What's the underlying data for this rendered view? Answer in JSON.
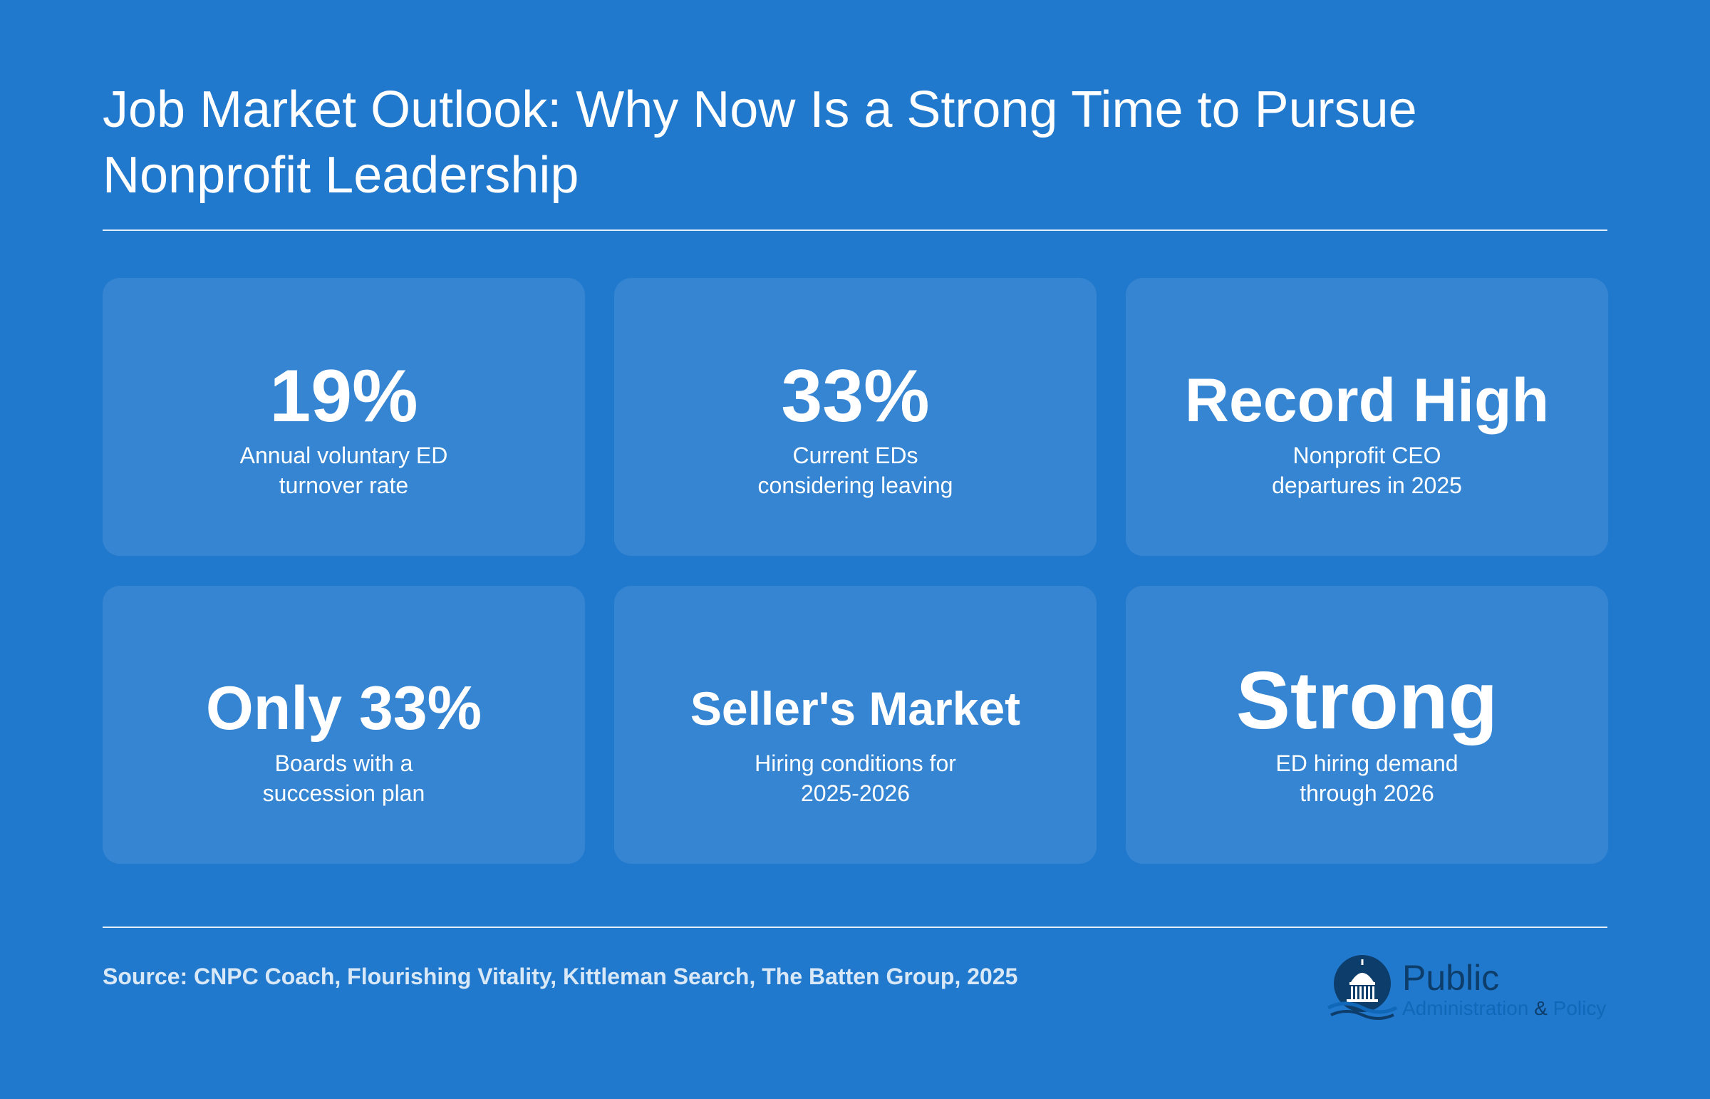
{
  "header": {
    "title": "Job Market Outlook: Why Now Is a Strong Time to Pursue Nonprofit Leadership"
  },
  "stats": [
    {
      "value": "19%",
      "label": "Annual voluntary ED\nturnover rate"
    },
    {
      "value": "33%",
      "label": "Current EDs\nconsidering leaving"
    },
    {
      "value": "Record High",
      "label": "Nonprofit CEO\ndepartures in 2025"
    },
    {
      "value": "Only 33%",
      "label": "Boards with a\nsuccession plan"
    },
    {
      "value": "Seller's Market",
      "label": "Hiring conditions for\n2025-2026"
    },
    {
      "value": "Strong",
      "label": "ED hiring demand\nthrough 2026"
    }
  ],
  "footer": {
    "source": "Source: CNPC Coach, Flourishing Vitality, Kittleman Search, The Batten Group, 2025",
    "logo": {
      "icon": "capitol-dome-icon",
      "name": "Public",
      "tagline": "Administration",
      "amp": "&",
      "tagline_end": "Policy"
    }
  },
  "colors": {
    "background": "#2079cd",
    "card": "#3585d2",
    "text": "#ffffff",
    "source_text": "#d9e8f7",
    "logo_dark": "#0d3d6b",
    "logo_accent": "#1268b8"
  }
}
